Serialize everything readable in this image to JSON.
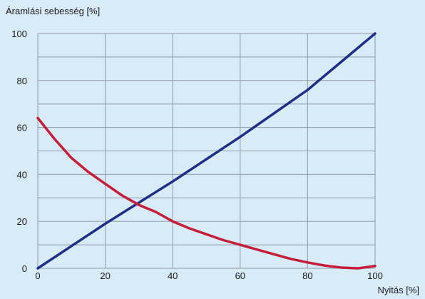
{
  "chart_data": {
    "type": "line",
    "title": "",
    "xlabel": "Nyitás [%]",
    "ylabel": "Áramlási sebesség [%]",
    "xlim": [
      0,
      100
    ],
    "ylim": [
      0,
      100
    ],
    "x_ticks": [
      0,
      20,
      40,
      60,
      80,
      100
    ],
    "y_ticks": [
      0,
      20,
      40,
      60,
      80,
      100
    ],
    "grid": true,
    "series": [
      {
        "color": "#1f2f86",
        "points": [
          [
            0,
            0
          ],
          [
            20,
            19
          ],
          [
            40,
            37
          ],
          [
            60,
            56
          ],
          [
            80,
            76
          ],
          [
            100,
            100
          ]
        ]
      },
      {
        "color": "#c41e3a",
        "points": [
          [
            0,
            64
          ],
          [
            5,
            55
          ],
          [
            10,
            47
          ],
          [
            15,
            41
          ],
          [
            20,
            36
          ],
          [
            25,
            31
          ],
          [
            30,
            27
          ],
          [
            35,
            24
          ],
          [
            40,
            20
          ],
          [
            45,
            17
          ],
          [
            50,
            14.5
          ],
          [
            55,
            12
          ],
          [
            60,
            10
          ],
          [
            65,
            8
          ],
          [
            70,
            6
          ],
          [
            75,
            4
          ],
          [
            80,
            2.5
          ],
          [
            85,
            1.2
          ],
          [
            90,
            0.3
          ],
          [
            95,
            0
          ],
          [
            100,
            1
          ]
        ]
      }
    ]
  }
}
